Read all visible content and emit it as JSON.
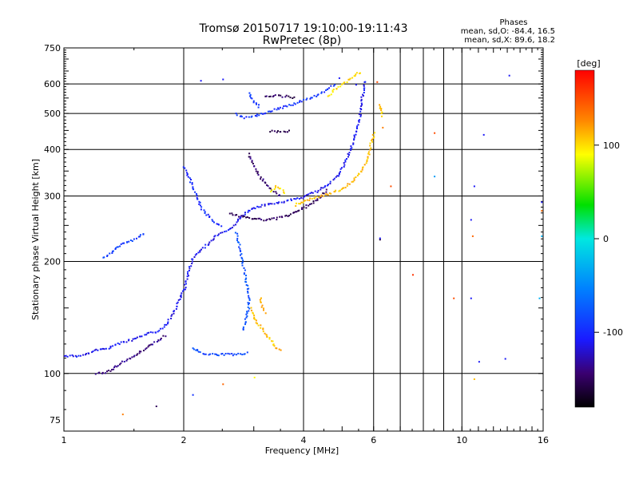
{
  "chart_data": {
    "type": "scatter",
    "title": "Tromsø 20150717 19:10:00-19:11:43",
    "subtitle": "RwPretec (8p)",
    "xlabel": "Frequency [MHz]",
    "ylabel": "Stationary phase Virtual Height [km]",
    "x_scale": "log",
    "y_scale": "log",
    "xlim": [
      1,
      16
    ],
    "ylim": [
      70,
      750
    ],
    "x_ticks": [
      1,
      2,
      4,
      6,
      10,
      16
    ],
    "x_tick_labels": [
      "1",
      "2",
      "4",
      "6",
      "10",
      "16"
    ],
    "x_gridlines": [
      2,
      4,
      6,
      7,
      8,
      9,
      10
    ],
    "y_ticks": [
      75,
      100,
      200,
      300,
      400,
      500,
      600,
      750
    ],
    "y_tick_labels": [
      "75",
      "100",
      "200",
      "300",
      "400",
      "500",
      "600",
      "750"
    ],
    "y_gridlines": [
      100,
      200,
      300,
      400,
      500,
      600
    ],
    "grid": true,
    "legend": {
      "heading": "Phases",
      "line_o": "mean, sd,O: -84.4, 16.5",
      "line_x": "mean, sd,X:  89.6, 18.2",
      "placement": "top-right"
    },
    "colorbar": {
      "label": "[deg]",
      "range": [
        -180,
        180
      ],
      "ticks": [
        100,
        0,
        -100
      ],
      "tick_labels": [
        "100",
        "0",
        "-100"
      ],
      "placement": "right"
    },
    "traces": [
      {
        "mode": "O",
        "phase": -110,
        "points": [
          [
            1.0,
            112
          ],
          [
            1.1,
            112
          ],
          [
            1.2,
            116
          ],
          [
            1.3,
            118
          ],
          [
            1.4,
            122
          ],
          [
            1.5,
            124
          ],
          [
            1.6,
            128
          ],
          [
            1.7,
            130
          ],
          [
            1.8,
            136
          ],
          [
            1.9,
            150
          ],
          [
            2.0,
            170
          ],
          [
            2.05,
            190
          ],
          [
            2.1,
            205
          ],
          [
            2.2,
            215
          ],
          [
            2.3,
            225
          ],
          [
            2.4,
            235
          ],
          [
            2.5,
            240
          ],
          [
            2.6,
            245
          ],
          [
            2.7,
            255
          ],
          [
            2.8,
            268
          ],
          [
            2.9,
            275
          ],
          [
            3.0,
            280
          ],
          [
            3.2,
            285
          ],
          [
            3.5,
            290
          ],
          [
            3.8,
            296
          ],
          [
            4.0,
            300
          ],
          [
            4.3,
            310
          ],
          [
            4.6,
            325
          ],
          [
            4.9,
            345
          ],
          [
            5.1,
            375
          ],
          [
            5.3,
            420
          ],
          [
            5.5,
            480
          ],
          [
            5.6,
            560
          ],
          [
            5.7,
            620
          ]
        ]
      },
      {
        "mode": "O",
        "phase": -100,
        "points": [
          [
            2.0,
            360
          ],
          [
            2.05,
            340
          ],
          [
            2.1,
            320
          ],
          [
            2.15,
            300
          ],
          [
            2.2,
            280
          ],
          [
            2.3,
            265
          ],
          [
            2.4,
            255
          ],
          [
            2.5,
            250
          ]
        ]
      },
      {
        "mode": "O",
        "phase": -95,
        "points": [
          [
            2.7,
            500
          ],
          [
            2.8,
            490
          ],
          [
            2.9,
            490
          ],
          [
            3.0,
            495
          ],
          [
            3.2,
            505
          ],
          [
            3.4,
            515
          ],
          [
            3.6,
            525
          ],
          [
            3.8,
            535
          ],
          [
            4.0,
            545
          ],
          [
            4.2,
            555
          ],
          [
            4.4,
            570
          ],
          [
            4.6,
            585
          ],
          [
            4.8,
            605
          ]
        ]
      },
      {
        "mode": "O",
        "phase": -90,
        "points": [
          [
            2.9,
            570
          ],
          [
            3.0,
            540
          ],
          [
            3.1,
            520
          ]
        ]
      },
      {
        "mode": "O",
        "phase": -150,
        "points": [
          [
            3.2,
            555
          ],
          [
            3.4,
            560
          ],
          [
            3.6,
            558
          ],
          [
            3.8,
            552
          ]
        ]
      },
      {
        "mode": "O",
        "phase": -145,
        "points": [
          [
            2.9,
            390
          ],
          [
            3.0,
            360
          ],
          [
            3.1,
            340
          ],
          [
            3.2,
            325
          ],
          [
            3.35,
            310
          ],
          [
            3.5,
            300
          ]
        ]
      },
      {
        "mode": "O",
        "phase": -150,
        "points": [
          [
            2.6,
            270
          ],
          [
            2.8,
            265
          ],
          [
            3.0,
            262
          ],
          [
            3.2,
            260
          ],
          [
            3.4,
            262
          ],
          [
            3.6,
            266
          ],
          [
            3.8,
            272
          ],
          [
            4.0,
            280
          ],
          [
            4.2,
            290
          ],
          [
            4.4,
            300
          ],
          [
            4.6,
            315
          ]
        ]
      },
      {
        "mode": "O",
        "phase": -80,
        "points": [
          [
            2.7,
            240
          ],
          [
            2.75,
            220
          ],
          [
            2.8,
            200
          ],
          [
            2.85,
            180
          ],
          [
            2.9,
            165
          ],
          [
            2.9,
            150
          ],
          [
            2.85,
            140
          ],
          [
            2.8,
            130
          ]
        ]
      },
      {
        "mode": "O",
        "phase": -85,
        "points": [
          [
            2.1,
            118
          ],
          [
            2.2,
            114
          ],
          [
            2.3,
            113
          ],
          [
            2.5,
            113
          ],
          [
            2.7,
            113
          ],
          [
            2.9,
            114
          ]
        ]
      },
      {
        "mode": "O",
        "phase": -90,
        "points": [
          [
            1.25,
            205
          ],
          [
            1.3,
            210
          ],
          [
            1.4,
            225
          ],
          [
            1.5,
            230
          ],
          [
            1.6,
            240
          ]
        ]
      },
      {
        "mode": "O",
        "phase": -140,
        "points": [
          [
            1.2,
            100
          ],
          [
            1.3,
            102
          ],
          [
            1.4,
            108
          ],
          [
            1.5,
            112
          ],
          [
            1.6,
            118
          ],
          [
            1.7,
            122
          ],
          [
            1.8,
            128
          ]
        ]
      },
      {
        "mode": "O",
        "phase": -155,
        "points": [
          [
            3.3,
            450
          ],
          [
            3.5,
            448
          ],
          [
            3.7,
            450
          ]
        ]
      },
      {
        "mode": "X",
        "phase": 110,
        "points": [
          [
            3.8,
            285
          ],
          [
            4.0,
            292
          ],
          [
            4.3,
            300
          ],
          [
            4.6,
            305
          ],
          [
            5.0,
            315
          ],
          [
            5.3,
            330
          ],
          [
            5.6,
            355
          ],
          [
            5.8,
            385
          ],
          [
            5.9,
            420
          ],
          [
            6.0,
            450
          ]
        ]
      },
      {
        "mode": "X",
        "phase": 100,
        "points": [
          [
            3.3,
            310
          ],
          [
            3.4,
            320
          ],
          [
            3.5,
            315
          ],
          [
            3.6,
            305
          ]
        ]
      },
      {
        "mode": "X",
        "phase": 100,
        "points": [
          [
            4.6,
            560
          ],
          [
            4.8,
            585
          ],
          [
            5.0,
            605
          ],
          [
            5.2,
            620
          ],
          [
            5.4,
            640
          ],
          [
            5.6,
            650
          ]
        ]
      },
      {
        "mode": "X",
        "phase": 110,
        "points": [
          [
            2.95,
            150
          ],
          [
            3.0,
            140
          ],
          [
            3.1,
            135
          ],
          [
            3.2,
            128
          ],
          [
            3.3,
            123
          ],
          [
            3.4,
            118
          ],
          [
            3.5,
            115
          ]
        ]
      },
      {
        "mode": "X",
        "phase": 115,
        "points": [
          [
            3.1,
            160
          ],
          [
            3.15,
            150
          ],
          [
            3.2,
            145
          ]
        ]
      },
      {
        "mode": "X",
        "phase": 110,
        "points": [
          [
            6.2,
            530
          ],
          [
            6.25,
            510
          ],
          [
            6.3,
            490
          ]
        ]
      }
    ],
    "isolated_points": [
      {
        "x": 1.4,
        "y": 78,
        "phase": 130
      },
      {
        "x": 2.5,
        "y": 94,
        "phase": 140
      },
      {
        "x": 2.1,
        "y": 88,
        "phase": -95
      },
      {
        "x": 3.0,
        "y": 98,
        "phase": 90
      },
      {
        "x": 1.7,
        "y": 82,
        "phase": -150
      },
      {
        "x": 6.6,
        "y": 320,
        "phase": 150
      },
      {
        "x": 6.2,
        "y": 230,
        "phase": -160
      },
      {
        "x": 6.2,
        "y": 232,
        "phase": -110
      },
      {
        "x": 6.3,
        "y": 460,
        "phase": 130
      },
      {
        "x": 7.5,
        "y": 185,
        "phase": 160
      },
      {
        "x": 8.5,
        "y": 445,
        "phase": 150
      },
      {
        "x": 8.5,
        "y": 340,
        "phase": -40
      },
      {
        "x": 9.5,
        "y": 160,
        "phase": 150
      },
      {
        "x": 10.5,
        "y": 160,
        "phase": -110
      },
      {
        "x": 10.5,
        "y": 260,
        "phase": -110
      },
      {
        "x": 10.7,
        "y": 320,
        "phase": -110
      },
      {
        "x": 10.6,
        "y": 235,
        "phase": 140
      },
      {
        "x": 11.0,
        "y": 108,
        "phase": -110
      },
      {
        "x": 10.7,
        "y": 97,
        "phase": 110
      },
      {
        "x": 11.3,
        "y": 440,
        "phase": -110
      },
      {
        "x": 12.8,
        "y": 110,
        "phase": -110
      },
      {
        "x": 13.1,
        "y": 635,
        "phase": -110
      },
      {
        "x": 15.8,
        "y": 290,
        "phase": -110
      },
      {
        "x": 15.8,
        "y": 275,
        "phase": 140
      },
      {
        "x": 15.8,
        "y": 235,
        "phase": -30
      },
      {
        "x": 15.6,
        "y": 160,
        "phase": -30
      },
      {
        "x": 4.9,
        "y": 625,
        "phase": -110
      },
      {
        "x": 5.4,
        "y": 600,
        "phase": -110
      },
      {
        "x": 6.1,
        "y": 610,
        "phase": 150
      },
      {
        "x": 2.2,
        "y": 615,
        "phase": -110
      },
      {
        "x": 2.5,
        "y": 620,
        "phase": -110
      }
    ]
  }
}
